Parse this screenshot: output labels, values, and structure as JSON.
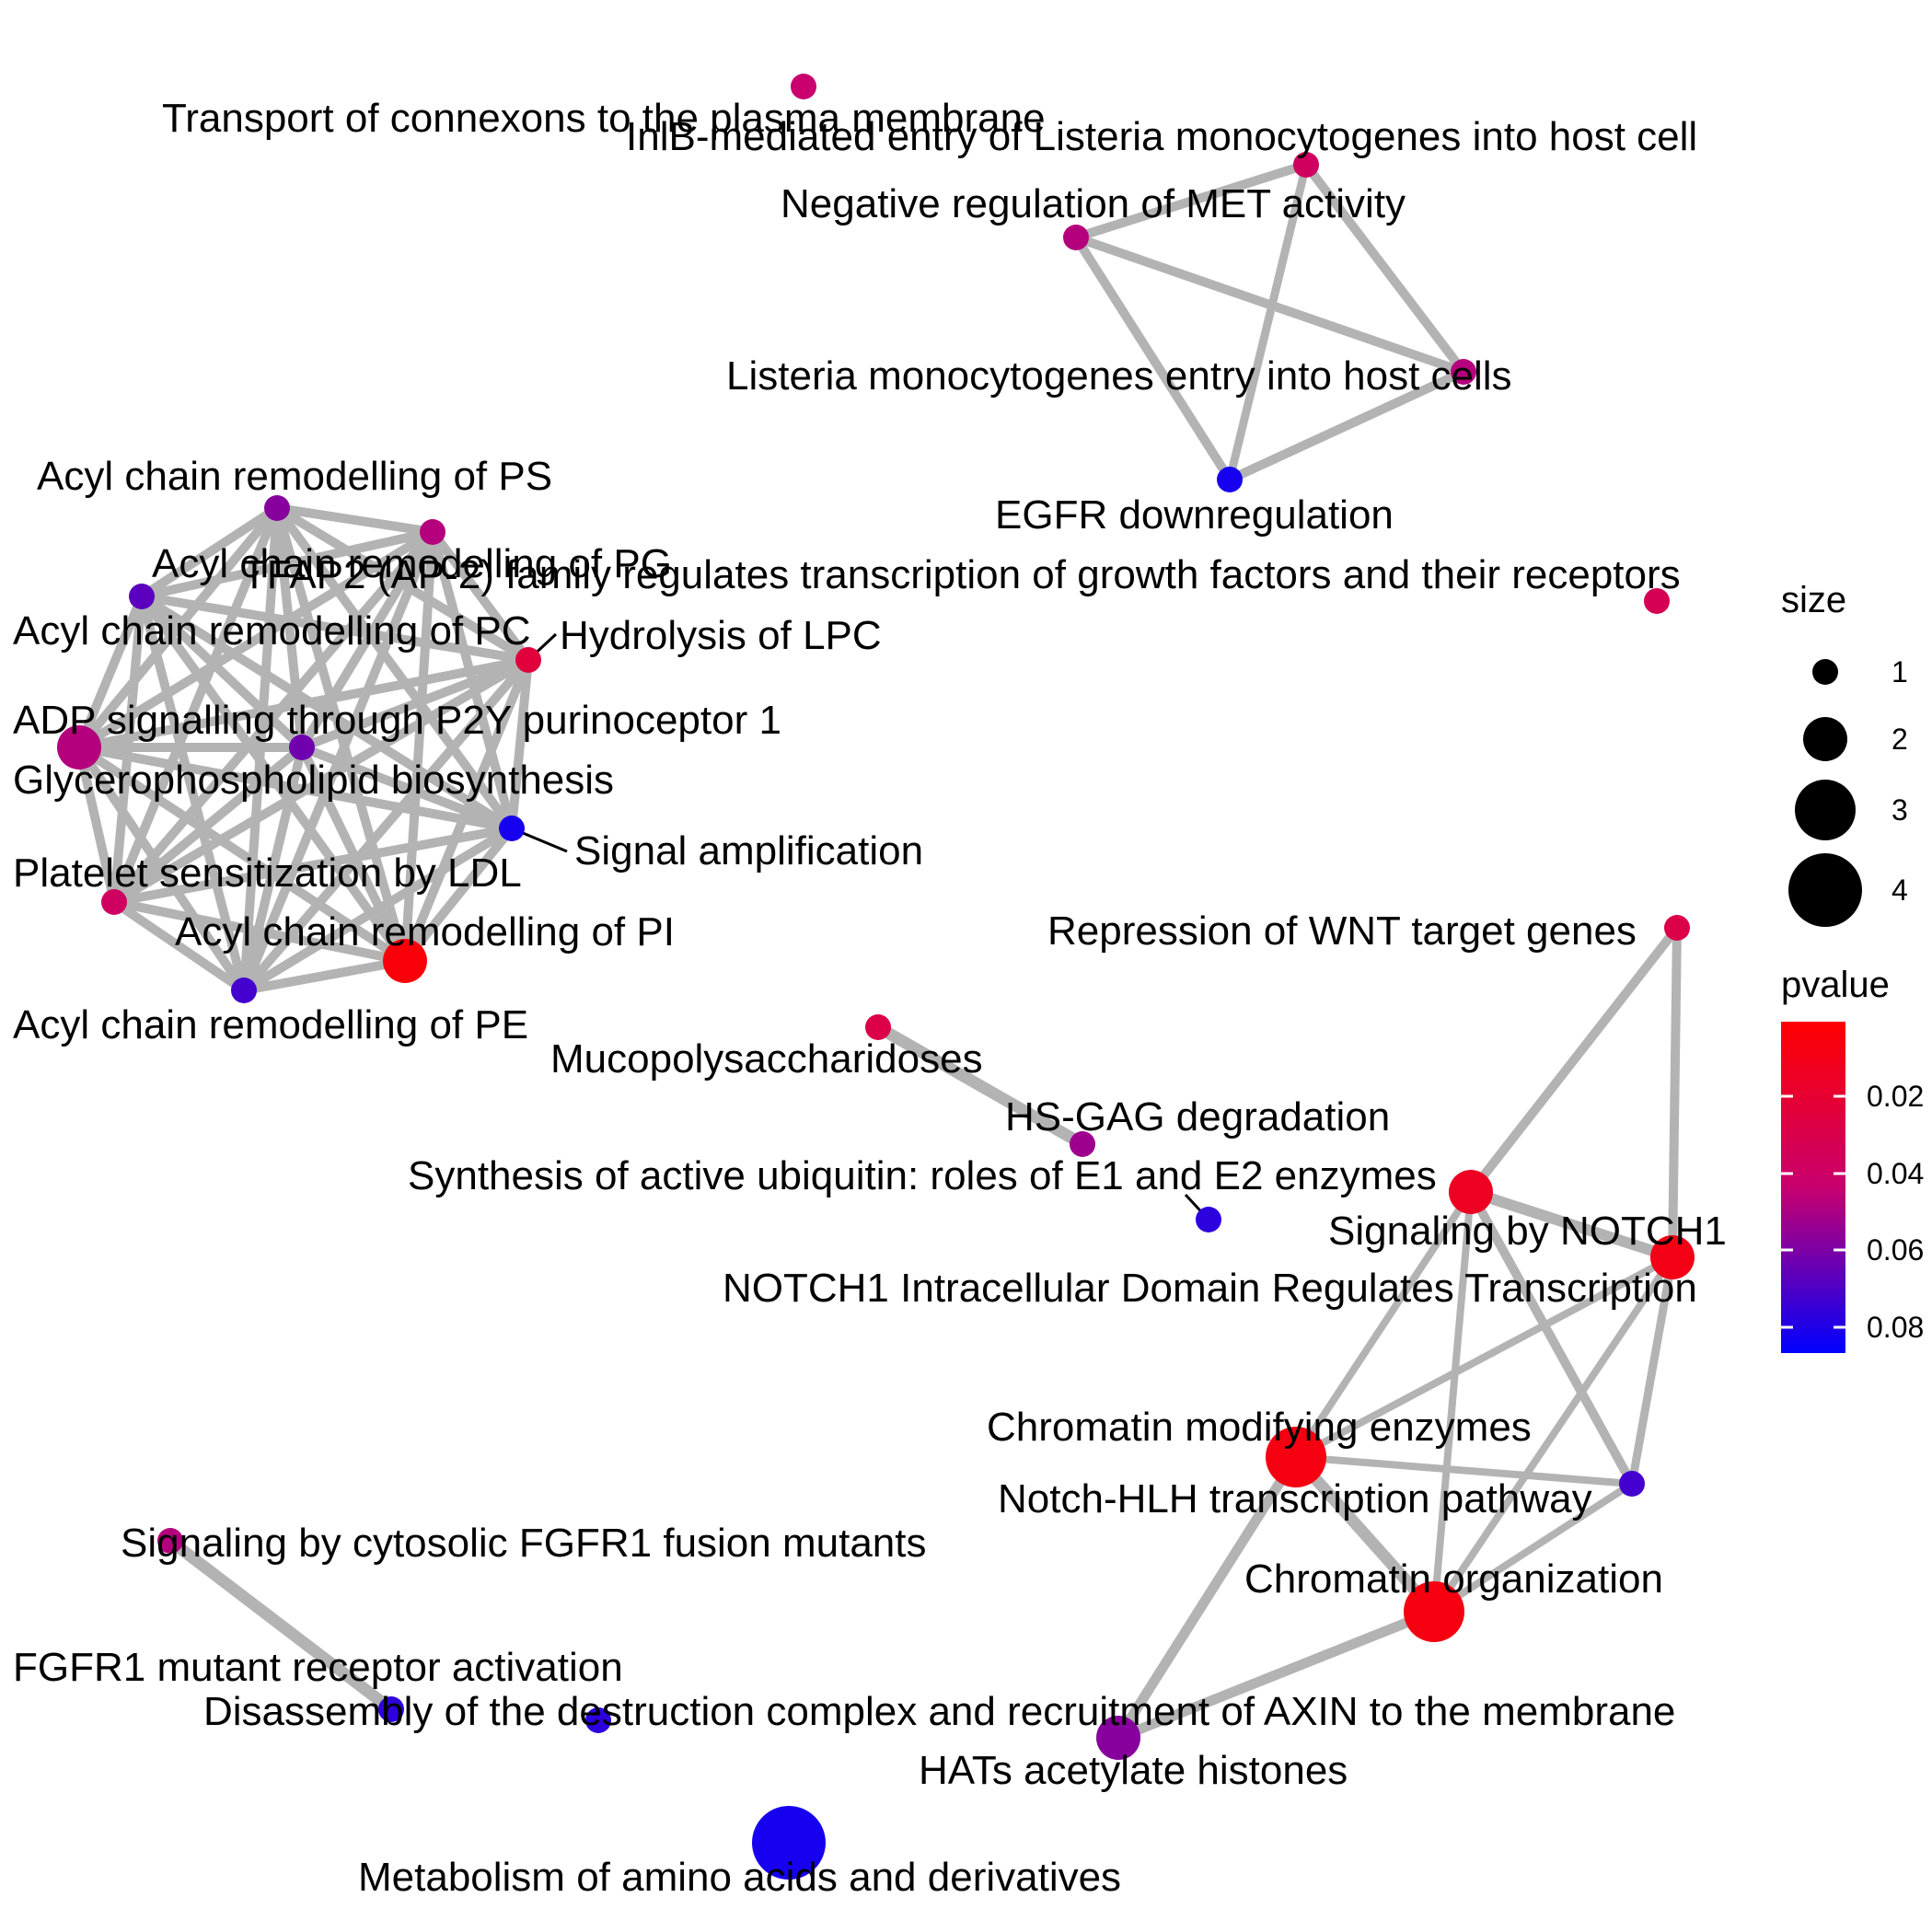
{
  "chart_data": {
    "type": "network",
    "nodes": [
      {
        "id": "transport",
        "label": "Transport of connexons to the plasma membrane",
        "size": 1,
        "pvalue": 0.045
      },
      {
        "id": "inlb",
        "label": "InlB-mediated entry of Listeria monocytogenes into host cell",
        "size": 1,
        "pvalue": 0.04
      },
      {
        "id": "negmet",
        "label": "Negative regulation of MET activity",
        "size": 1,
        "pvalue": 0.05
      },
      {
        "id": "listeria",
        "label": "Listeria monocytogenes entry into host cells",
        "size": 1,
        "pvalue": 0.05
      },
      {
        "id": "egfr",
        "label": "EGFR downregulation",
        "size": 1,
        "pvalue": 0.085
      },
      {
        "id": "tfap2",
        "label": "TFAP2 (AP-2) family regulates transcription of growth factors and their receptors",
        "size": 1,
        "pvalue": 0.035
      },
      {
        "id": "acps",
        "label": "Acyl chain remodelling of PS",
        "size": 1,
        "pvalue": 0.06
      },
      {
        "id": "acpg",
        "label": "Acyl chain remodelling of PG",
        "size": 1,
        "pvalue": 0.05
      },
      {
        "id": "acpc",
        "label": "Acyl chain remodelling of PC",
        "size": 1,
        "pvalue": 0.07
      },
      {
        "id": "hlpc",
        "label": "Hydrolysis of LPC",
        "size": 1,
        "pvalue": 0.025
      },
      {
        "id": "adp",
        "label": "ADP signalling through P2Y purinoceptor 1",
        "size": 2,
        "pvalue": 0.05
      },
      {
        "id": "gpl",
        "label": "Glycerophospholipid biosynthesis",
        "size": 1,
        "pvalue": 0.065
      },
      {
        "id": "sigamp",
        "label": "Signal amplification",
        "size": 1,
        "pvalue": 0.085
      },
      {
        "id": "platelet",
        "label": "Platelet sensitization by LDL",
        "size": 1,
        "pvalue": 0.04
      },
      {
        "id": "acpi",
        "label": "Acyl chain remodelling of PI",
        "size": 2,
        "pvalue": 0.005
      },
      {
        "id": "acpe",
        "label": "Acyl chain remodelling of PE",
        "size": 1,
        "pvalue": 0.075
      },
      {
        "id": "muco",
        "label": "Mucopolysaccharidoses",
        "size": 1,
        "pvalue": 0.03
      },
      {
        "id": "hsgag",
        "label": "HS-GAG degradation",
        "size": 1,
        "pvalue": 0.055
      },
      {
        "id": "ubiq",
        "label": "Synthesis of active ubiquitin: roles of E1 and E2 enzymes",
        "size": 1,
        "pvalue": 0.08
      },
      {
        "id": "wnt",
        "label": "Repression of WNT target genes",
        "size": 1,
        "pvalue": 0.03
      },
      {
        "id": "notch1",
        "label": "Signaling by NOTCH1",
        "size": 2,
        "pvalue": 0.015
      },
      {
        "id": "nicd",
        "label": "NOTCH1 Intracellular Domain Regulates Transcription",
        "size": 2,
        "pvalue": 0.01
      },
      {
        "id": "chrmod",
        "label": "Chromatin modifying enzymes",
        "size": 3,
        "pvalue": 0.008
      },
      {
        "id": "nhlh",
        "label": "Notch-HLH transcription pathway",
        "size": 1,
        "pvalue": 0.075
      },
      {
        "id": "chrorg",
        "label": "Chromatin organization",
        "size": 3,
        "pvalue": 0.008
      },
      {
        "id": "hats",
        "label": "HATs acetylate histones",
        "size": 2,
        "pvalue": 0.06
      },
      {
        "id": "fgfrfus",
        "label": "Signaling by cytosolic FGFR1 fusion mutants",
        "size": 1,
        "pvalue": 0.05
      },
      {
        "id": "fgfrmut",
        "label": "FGFR1 mutant receptor activation",
        "size": 1,
        "pvalue": 0.08
      },
      {
        "id": "axin",
        "label": "Disassembly of the destruction complex and recruitment of AXIN to the membrane",
        "size": 1,
        "pvalue": 0.08
      },
      {
        "id": "amino",
        "label": "Metabolism of amino acids and derivatives",
        "size": 4,
        "pvalue": 0.085
      }
    ],
    "edges": [
      {
        "source": "inlb",
        "target": "negmet",
        "weight": 0.6
      },
      {
        "source": "inlb",
        "target": "listeria",
        "weight": 0.6
      },
      {
        "source": "inlb",
        "target": "egfr",
        "weight": 0.5
      },
      {
        "source": "negmet",
        "target": "listeria",
        "weight": 0.6
      },
      {
        "source": "negmet",
        "target": "egfr",
        "weight": 0.6
      },
      {
        "source": "listeria",
        "target": "egfr",
        "weight": 0.6
      },
      {
        "source": "muco",
        "target": "hsgag",
        "weight": 0.9
      },
      {
        "source": "fgfrfus",
        "target": "fgfrmut",
        "weight": 0.9
      },
      {
        "source": "wnt",
        "target": "notch1",
        "weight": 0.6
      },
      {
        "source": "wnt",
        "target": "nicd",
        "weight": 0.6
      },
      {
        "source": "notch1",
        "target": "nicd",
        "weight": 0.8
      },
      {
        "source": "notch1",
        "target": "chrmod",
        "weight": 0.4
      },
      {
        "source": "notch1",
        "target": "chrorg",
        "weight": 0.4
      },
      {
        "source": "notch1",
        "target": "nhlh",
        "weight": 0.6
      },
      {
        "source": "nicd",
        "target": "chrmod",
        "weight": 0.4
      },
      {
        "source": "nicd",
        "target": "chrorg",
        "weight": 0.4
      },
      {
        "source": "nicd",
        "target": "nhlh",
        "weight": 0.5
      },
      {
        "source": "chrmod",
        "target": "chrorg",
        "weight": 0.9
      },
      {
        "source": "chrmod",
        "target": "nhlh",
        "weight": 0.4
      },
      {
        "source": "chrmod",
        "target": "hats",
        "weight": 0.7
      },
      {
        "source": "chrorg",
        "target": "hats",
        "weight": 0.7
      },
      {
        "source": "chrorg",
        "target": "nhlh",
        "weight": 0.4
      }
    ],
    "cliques": [
      {
        "members": [
          "acps",
          "acpg",
          "acpc",
          "hlpc",
          "adp",
          "gpl",
          "sigamp",
          "platelet",
          "acpi",
          "acpe"
        ],
        "weight": 0.6
      }
    ],
    "legend": {
      "size_title": "size",
      "size_labels": [
        "1",
        "2",
        "3",
        "4"
      ],
      "color_title": "pvalue",
      "color_ticks": [
        "0.02",
        "0.04",
        "0.06",
        "0.08"
      ],
      "color_low": "#ff0000",
      "color_high": "#0000ff",
      "pvalue_range": [
        0.001,
        0.09
      ]
    },
    "colors": {
      "edge": "#b3b3b3",
      "label": "#000000",
      "leader": "#000000"
    }
  }
}
